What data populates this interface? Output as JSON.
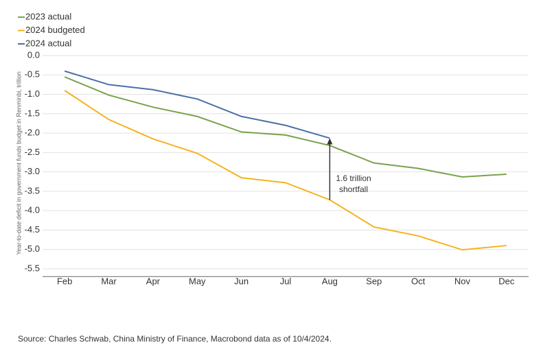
{
  "chart_data": {
    "type": "line",
    "y_label": "Year-to-date deficit in government funds budget in Renminbi, trillion",
    "categories": [
      "Feb",
      "Mar",
      "Apr",
      "May",
      "Jun",
      "Jul",
      "Aug",
      "Sep",
      "Oct",
      "Nov",
      "Dec"
    ],
    "series": [
      {
        "name": "2023 actual",
        "color": "#78a24c",
        "values": [
          -0.55,
          -1.02,
          -1.33,
          -1.57,
          -1.97,
          -2.05,
          -2.32,
          -2.77,
          -2.91,
          -3.13,
          -3.06
        ]
      },
      {
        "name": "2024 budgeted",
        "color": "#f5b21c",
        "values": [
          -0.9,
          -1.65,
          -2.15,
          -2.52,
          -3.15,
          -3.28,
          -3.72,
          -4.42,
          -4.65,
          -5.01,
          -4.9
        ]
      },
      {
        "name": "2024 actual",
        "color": "#4a6fa8",
        "values": [
          -0.4,
          -0.75,
          -0.88,
          -1.12,
          -1.57,
          -1.8,
          -2.13,
          null,
          null,
          null,
          null
        ]
      }
    ],
    "ylim": [
      -5.7,
      0
    ],
    "yticks": [
      {
        "value": 0,
        "label": "0.0"
      },
      -0.5,
      {
        "value": -1,
        "label": "-1.0"
      },
      -1.5,
      {
        "value": -2,
        "label": "-2.0"
      },
      -2.5,
      {
        "value": -3,
        "label": "-3.0"
      },
      -3.5,
      {
        "value": -4,
        "label": "-4.0"
      },
      -4.5,
      {
        "value": -5,
        "label": "-5.0"
      },
      -5.5
    ],
    "grid": true,
    "legend": "top-left",
    "annotation": [
      "1.6 trillion",
      "shortfall"
    ],
    "source": "Source: Charles Schwab, China Ministry of Finance, Macrobond data as of 10/4/2024."
  }
}
